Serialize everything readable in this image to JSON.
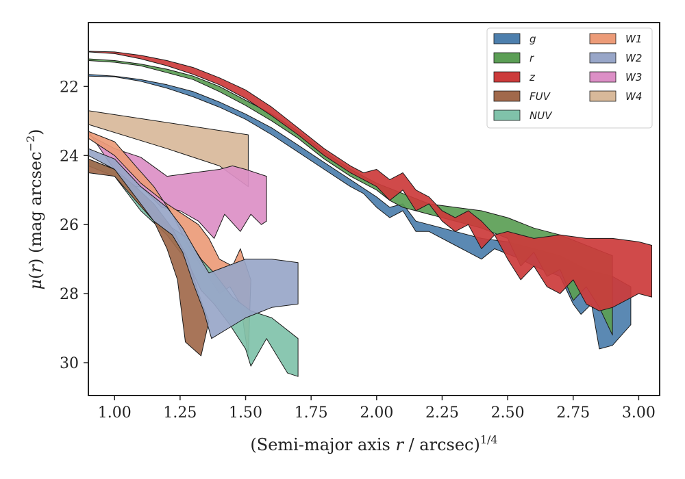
{
  "chart_data": {
    "type": "area",
    "title": "",
    "xlabel": "(Semi-major axis r / arcsec)^{1/4}",
    "xlabel_parts": {
      "pre": "(Semi-major axis ",
      "var": "r",
      "mid": " / arcsec)",
      "sup": "1/4"
    },
    "ylabel": "μ(r) (mag arcsec^{−2})",
    "ylabel_parts": {
      "var": "μ",
      "paren_open": "(",
      "arg": "r",
      "paren_close": ")",
      "units": " (mag arcsec",
      "sup": "−2",
      "end": ")"
    },
    "xlim": [
      0.9,
      3.08
    ],
    "ylim": [
      30.95,
      20.15
    ],
    "y_inverted": true,
    "xticks": [
      "1.00",
      "1.25",
      "1.50",
      "1.75",
      "2.00",
      "2.25",
      "2.50",
      "2.75",
      "3.00"
    ],
    "xtick_values": [
      1.0,
      1.25,
      1.5,
      1.75,
      2.0,
      2.25,
      2.5,
      2.75,
      3.0
    ],
    "yticks": [
      "22",
      "24",
      "26",
      "28",
      "30"
    ],
    "ytick_values": [
      22,
      24,
      26,
      28,
      30
    ],
    "grid": false,
    "legend_position": "top-right",
    "legend_columns": 2,
    "series": [
      {
        "name": "W4",
        "color": "#d8b99a",
        "upper": [
          [
            0.9,
            22.7
          ],
          [
            1.51,
            23.4
          ]
        ],
        "lower": [
          [
            0.9,
            23.1
          ],
          [
            1.2,
            23.8
          ],
          [
            1.4,
            24.3
          ],
          [
            1.51,
            24.9
          ]
        ]
      },
      {
        "name": "W3",
        "color": "#dc8fc6",
        "upper": [
          [
            0.9,
            23.4
          ],
          [
            1.0,
            23.8
          ],
          [
            1.1,
            24.05
          ],
          [
            1.2,
            24.6
          ],
          [
            1.3,
            24.5
          ],
          [
            1.4,
            24.4
          ],
          [
            1.45,
            24.3
          ],
          [
            1.5,
            24.4
          ],
          [
            1.58,
            24.6
          ]
        ],
        "lower": [
          [
            0.9,
            23.3
          ],
          [
            0.98,
            24.2
          ],
          [
            1.05,
            24.9
          ],
          [
            1.1,
            24.9
          ],
          [
            1.18,
            25.5
          ],
          [
            1.25,
            25.6
          ],
          [
            1.32,
            25.9
          ],
          [
            1.38,
            26.4
          ],
          [
            1.42,
            25.7
          ],
          [
            1.48,
            26.2
          ],
          [
            1.52,
            25.7
          ],
          [
            1.56,
            26.0
          ],
          [
            1.58,
            25.9
          ]
        ]
      },
      {
        "name": "W1",
        "color": "#ec9b78",
        "upper": [
          [
            0.9,
            23.5
          ],
          [
            1.0,
            24.0
          ],
          [
            1.1,
            24.8
          ],
          [
            1.2,
            25.4
          ],
          [
            1.28,
            25.8
          ],
          [
            1.32,
            26.0
          ],
          [
            1.36,
            26.4
          ],
          [
            1.4,
            27.0
          ],
          [
            1.45,
            27.2
          ],
          [
            1.48,
            26.7
          ],
          [
            1.52,
            27.6
          ]
        ],
        "lower": [
          [
            0.9,
            23.3
          ],
          [
            1.0,
            23.6
          ],
          [
            1.08,
            24.3
          ],
          [
            1.15,
            24.9
          ],
          [
            1.22,
            25.7
          ],
          [
            1.28,
            26.6
          ],
          [
            1.34,
            27.3
          ],
          [
            1.4,
            28.0
          ],
          [
            1.44,
            27.8
          ],
          [
            1.48,
            28.3
          ],
          [
            1.51,
            29.8
          ]
        ]
      },
      {
        "name": "NUV",
        "color": "#80c2aa",
        "upper": [
          [
            0.9,
            24.1
          ],
          [
            1.0,
            24.4
          ],
          [
            1.1,
            25.3
          ],
          [
            1.2,
            26.0
          ],
          [
            1.28,
            26.4
          ],
          [
            1.33,
            27.0
          ],
          [
            1.38,
            27.4
          ],
          [
            1.45,
            28.1
          ],
          [
            1.52,
            28.5
          ],
          [
            1.6,
            28.7
          ],
          [
            1.7,
            29.3
          ]
        ],
        "lower": [
          [
            0.9,
            24.3
          ],
          [
            1.0,
            24.6
          ],
          [
            1.1,
            25.6
          ],
          [
            1.2,
            26.3
          ],
          [
            1.28,
            27.1
          ],
          [
            1.33,
            27.9
          ],
          [
            1.38,
            28.3
          ],
          [
            1.44,
            28.9
          ],
          [
            1.5,
            29.6
          ],
          [
            1.52,
            30.1
          ],
          [
            1.58,
            29.3
          ],
          [
            1.62,
            29.8
          ],
          [
            1.66,
            30.3
          ],
          [
            1.7,
            30.4
          ]
        ]
      },
      {
        "name": "FUV",
        "color": "#a1694b",
        "upper": [
          [
            0.9,
            24.1
          ],
          [
            1.0,
            24.4
          ],
          [
            1.08,
            24.9
          ],
          [
            1.15,
            25.4
          ],
          [
            1.22,
            26.1
          ],
          [
            1.28,
            27.0
          ],
          [
            1.33,
            28.2
          ],
          [
            1.36,
            28.8
          ]
        ],
        "lower": [
          [
            0.9,
            24.5
          ],
          [
            1.0,
            24.6
          ],
          [
            1.08,
            25.3
          ],
          [
            1.15,
            25.9
          ],
          [
            1.2,
            26.7
          ],
          [
            1.24,
            27.6
          ],
          [
            1.27,
            29.4
          ],
          [
            1.33,
            29.8
          ],
          [
            1.36,
            28.8
          ]
        ]
      },
      {
        "name": "W2",
        "color": "#98a6c8",
        "upper": [
          [
            0.9,
            23.8
          ],
          [
            1.0,
            24.1
          ],
          [
            1.1,
            24.9
          ],
          [
            1.2,
            25.5
          ],
          [
            1.26,
            26.1
          ],
          [
            1.32,
            26.9
          ],
          [
            1.36,
            27.4
          ],
          [
            1.5,
            27.0
          ],
          [
            1.6,
            27.0
          ],
          [
            1.7,
            27.1
          ]
        ],
        "lower": [
          [
            0.9,
            24.0
          ],
          [
            1.0,
            24.4
          ],
          [
            1.08,
            25.2
          ],
          [
            1.15,
            25.9
          ],
          [
            1.22,
            26.3
          ],
          [
            1.26,
            26.8
          ],
          [
            1.3,
            27.7
          ],
          [
            1.34,
            28.5
          ],
          [
            1.37,
            29.3
          ],
          [
            1.5,
            28.7
          ],
          [
            1.6,
            28.4
          ],
          [
            1.7,
            28.3
          ]
        ]
      },
      {
        "name": "g",
        "color": "#4d7fad",
        "upper": [
          [
            0.9,
            21.65
          ],
          [
            1.0,
            21.7
          ],
          [
            1.1,
            21.8
          ],
          [
            1.2,
            21.95
          ],
          [
            1.3,
            22.15
          ],
          [
            1.4,
            22.45
          ],
          [
            1.5,
            22.8
          ],
          [
            1.6,
            23.2
          ],
          [
            1.7,
            23.7
          ],
          [
            1.8,
            24.2
          ],
          [
            1.9,
            24.7
          ],
          [
            2.0,
            25.2
          ],
          [
            2.05,
            25.5
          ],
          [
            2.1,
            25.4
          ],
          [
            2.15,
            25.9
          ],
          [
            2.2,
            26.0
          ],
          [
            2.3,
            26.2
          ],
          [
            2.4,
            26.4
          ],
          [
            2.5,
            26.5
          ],
          [
            2.6,
            26.7
          ],
          [
            2.7,
            26.9
          ],
          [
            2.8,
            27.3
          ],
          [
            2.9,
            27.5
          ],
          [
            2.97,
            27.8
          ]
        ],
        "lower": [
          [
            0.9,
            21.7
          ],
          [
            1.0,
            21.72
          ],
          [
            1.1,
            21.85
          ],
          [
            1.2,
            22.05
          ],
          [
            1.3,
            22.3
          ],
          [
            1.4,
            22.6
          ],
          [
            1.5,
            22.95
          ],
          [
            1.6,
            23.4
          ],
          [
            1.7,
            23.9
          ],
          [
            1.8,
            24.4
          ],
          [
            1.9,
            24.9
          ],
          [
            1.95,
            25.1
          ],
          [
            2.0,
            25.5
          ],
          [
            2.05,
            25.8
          ],
          [
            2.1,
            25.6
          ],
          [
            2.15,
            26.2
          ],
          [
            2.2,
            26.2
          ],
          [
            2.3,
            26.6
          ],
          [
            2.35,
            26.8
          ],
          [
            2.4,
            27.0
          ],
          [
            2.45,
            26.7
          ],
          [
            2.55,
            27.0
          ],
          [
            2.6,
            27.2
          ],
          [
            2.7,
            27.5
          ],
          [
            2.75,
            28.3
          ],
          [
            2.78,
            28.6
          ],
          [
            2.82,
            28.3
          ],
          [
            2.85,
            29.6
          ],
          [
            2.9,
            29.5
          ],
          [
            2.97,
            28.9
          ]
        ]
      },
      {
        "name": "r",
        "color": "#5b9e55",
        "upper": [
          [
            0.9,
            21.2
          ],
          [
            1.0,
            21.25
          ],
          [
            1.1,
            21.35
          ],
          [
            1.2,
            21.5
          ],
          [
            1.3,
            21.7
          ],
          [
            1.4,
            22.0
          ],
          [
            1.5,
            22.4
          ],
          [
            1.6,
            22.8
          ],
          [
            1.7,
            23.3
          ],
          [
            1.8,
            23.9
          ],
          [
            1.9,
            24.4
          ],
          [
            2.0,
            24.8
          ],
          [
            2.1,
            25.1
          ],
          [
            2.2,
            25.4
          ],
          [
            2.3,
            25.5
          ],
          [
            2.4,
            25.6
          ],
          [
            2.5,
            25.8
          ],
          [
            2.6,
            26.1
          ],
          [
            2.7,
            26.3
          ],
          [
            2.8,
            26.6
          ],
          [
            2.9,
            26.9
          ]
        ],
        "lower": [
          [
            0.9,
            21.25
          ],
          [
            1.0,
            21.3
          ],
          [
            1.1,
            21.4
          ],
          [
            1.2,
            21.6
          ],
          [
            1.3,
            21.8
          ],
          [
            1.4,
            22.15
          ],
          [
            1.5,
            22.55
          ],
          [
            1.6,
            23.0
          ],
          [
            1.7,
            23.5
          ],
          [
            1.8,
            24.1
          ],
          [
            1.9,
            24.6
          ],
          [
            2.0,
            25.0
          ],
          [
            2.05,
            25.3
          ],
          [
            2.1,
            25.5
          ],
          [
            2.2,
            25.7
          ],
          [
            2.3,
            25.9
          ],
          [
            2.4,
            26.1
          ],
          [
            2.5,
            26.4
          ],
          [
            2.55,
            27.2
          ],
          [
            2.6,
            26.8
          ],
          [
            2.65,
            27.5
          ],
          [
            2.7,
            27.3
          ],
          [
            2.75,
            28.2
          ],
          [
            2.8,
            27.8
          ],
          [
            2.85,
            28.4
          ],
          [
            2.9,
            29.2
          ]
        ]
      },
      {
        "name": "z",
        "color": "#cc3b3b",
        "upper": [
          [
            0.9,
            20.98
          ],
          [
            1.0,
            21.0
          ],
          [
            1.1,
            21.1
          ],
          [
            1.2,
            21.25
          ],
          [
            1.3,
            21.45
          ],
          [
            1.4,
            21.75
          ],
          [
            1.5,
            22.1
          ],
          [
            1.6,
            22.6
          ],
          [
            1.7,
            23.2
          ],
          [
            1.8,
            23.8
          ],
          [
            1.9,
            24.3
          ],
          [
            1.95,
            24.5
          ],
          [
            2.0,
            24.4
          ],
          [
            2.05,
            24.7
          ],
          [
            2.1,
            24.5
          ],
          [
            2.15,
            25.0
          ],
          [
            2.2,
            25.2
          ],
          [
            2.25,
            25.6
          ],
          [
            2.3,
            25.8
          ],
          [
            2.35,
            25.6
          ],
          [
            2.4,
            25.9
          ],
          [
            2.45,
            26.3
          ],
          [
            2.5,
            26.2
          ],
          [
            2.6,
            26.4
          ],
          [
            2.7,
            26.3
          ],
          [
            2.8,
            26.4
          ],
          [
            2.9,
            26.4
          ],
          [
            3.0,
            26.5
          ],
          [
            3.05,
            26.6
          ]
        ],
        "lower": [
          [
            0.9,
            21.0
          ],
          [
            1.0,
            21.05
          ],
          [
            1.1,
            21.2
          ],
          [
            1.2,
            21.4
          ],
          [
            1.3,
            21.65
          ],
          [
            1.4,
            21.95
          ],
          [
            1.5,
            22.35
          ],
          [
            1.6,
            22.85
          ],
          [
            1.7,
            23.4
          ],
          [
            1.8,
            24.0
          ],
          [
            1.9,
            24.5
          ],
          [
            1.95,
            24.7
          ],
          [
            2.0,
            24.9
          ],
          [
            2.05,
            25.3
          ],
          [
            2.1,
            25.0
          ],
          [
            2.15,
            25.6
          ],
          [
            2.2,
            25.4
          ],
          [
            2.25,
            25.9
          ],
          [
            2.3,
            26.2
          ],
          [
            2.35,
            26.0
          ],
          [
            2.4,
            26.7
          ],
          [
            2.45,
            26.3
          ],
          [
            2.5,
            27.0
          ],
          [
            2.55,
            27.6
          ],
          [
            2.6,
            27.2
          ],
          [
            2.65,
            27.8
          ],
          [
            2.7,
            28.0
          ],
          [
            2.75,
            27.6
          ],
          [
            2.8,
            28.3
          ],
          [
            2.85,
            28.5
          ],
          [
            2.9,
            28.4
          ],
          [
            3.0,
            28.0
          ],
          [
            3.05,
            28.1
          ]
        ]
      }
    ],
    "legend": [
      {
        "label": "g",
        "color": "#4d7fad"
      },
      {
        "label": "r",
        "color": "#5b9e55"
      },
      {
        "label": "z",
        "color": "#cc3b3b"
      },
      {
        "label": "FUV",
        "color": "#a1694b"
      },
      {
        "label": "NUV",
        "color": "#80c2aa"
      },
      {
        "label": "W1",
        "color": "#ec9b78"
      },
      {
        "label": "W2",
        "color": "#98a6c8"
      },
      {
        "label": "W3",
        "color": "#dc8fc6"
      },
      {
        "label": "W4",
        "color": "#d8b99a"
      }
    ]
  }
}
